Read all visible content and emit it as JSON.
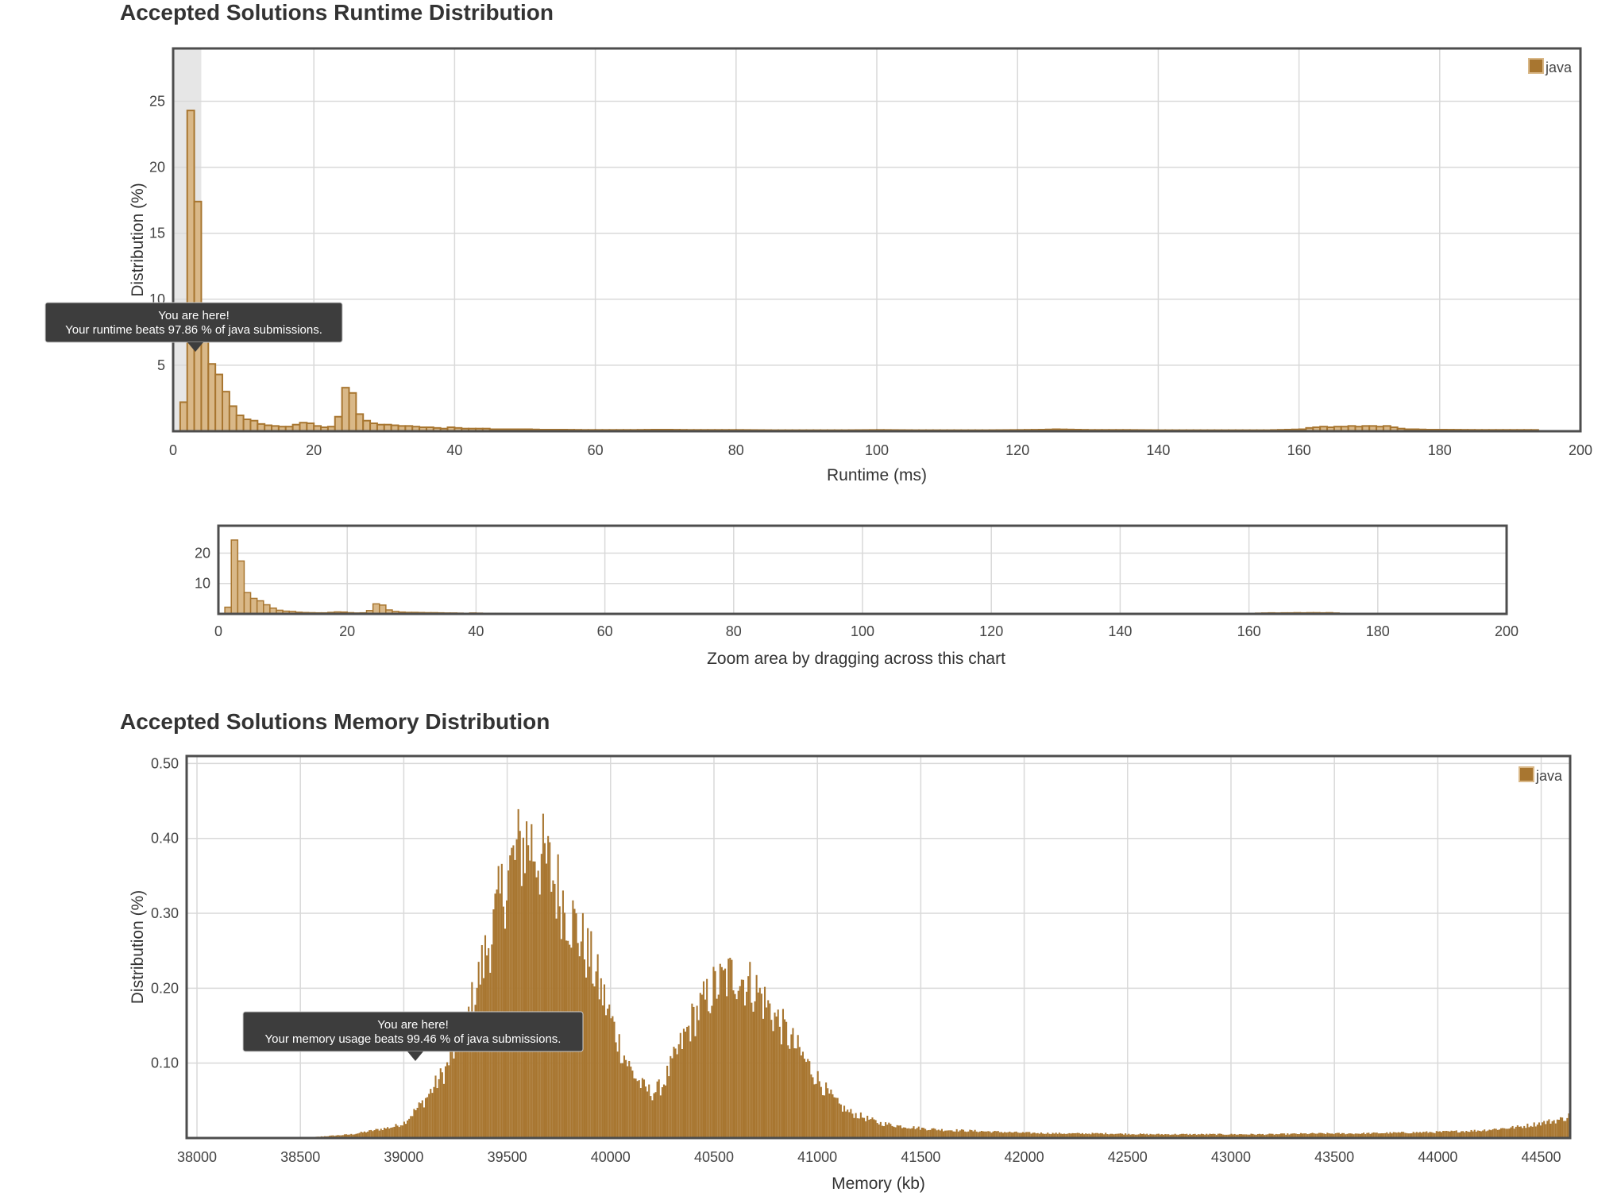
{
  "runtime": {
    "title": "Accepted Solutions Runtime Distribution",
    "tooltip": {
      "line1": "You are here!",
      "line2": "Your runtime beats 97.86 % of java submissions."
    }
  },
  "zoom": {
    "caption": "Zoom area by dragging across this chart"
  },
  "memory": {
    "title": "Accepted Solutions Memory Distribution",
    "tooltip": {
      "line1": "You are here!",
      "line2": "Your memory usage beats 99.46 % of java submissions."
    }
  },
  "colors": {
    "bar_fill": "#d9b888",
    "bar_stroke": "#a87630",
    "mem_fill": "#a87630",
    "grid": "#d9d9d9",
    "frame": "#4d4d4d",
    "highlight": "#e6e6e6",
    "tooltip_bg": "#3d3d3d"
  },
  "chart_data": [
    {
      "type": "bar",
      "title": "Accepted Solutions Runtime Distribution",
      "xlabel": "Runtime (ms)",
      "ylabel": "Distribution (%)",
      "xlim": [
        0,
        200
      ],
      "ylim": [
        0,
        29
      ],
      "xticks": [
        0,
        20,
        40,
        60,
        80,
        100,
        120,
        140,
        160,
        180,
        200
      ],
      "yticks": [
        5,
        10,
        15,
        20,
        25
      ],
      "grid": true,
      "legend": "top-right",
      "highlight_range": [
        0,
        4
      ],
      "bin_width": 1,
      "series": [
        {
          "name": "java",
          "x": [
            1,
            2,
            3,
            4,
            5,
            6,
            7,
            8,
            9,
            10,
            11,
            12,
            13,
            14,
            15,
            16,
            17,
            18,
            19,
            20,
            21,
            22,
            23,
            24,
            25,
            26,
            27,
            28,
            29,
            30,
            31,
            32,
            33,
            34,
            35,
            36,
            37,
            38,
            39,
            40,
            41,
            42,
            43,
            44,
            45,
            46,
            47,
            48,
            49,
            50,
            52,
            55,
            58,
            60,
            63,
            65,
            68,
            70,
            73,
            75,
            78,
            80,
            85,
            90,
            95,
            100,
            105,
            110,
            115,
            120,
            123,
            125,
            128,
            130,
            135,
            140,
            145,
            150,
            155,
            160,
            161,
            162,
            163,
            164,
            165,
            166,
            167,
            168,
            169,
            170,
            171,
            172,
            173,
            174,
            175,
            176,
            178,
            180,
            185,
            190,
            193
          ],
          "values": [
            2.2,
            24.3,
            17.4,
            7.0,
            5.1,
            4.3,
            3.0,
            1.9,
            1.2,
            0.9,
            0.8,
            0.55,
            0.45,
            0.4,
            0.35,
            0.35,
            0.5,
            0.65,
            0.6,
            0.4,
            0.3,
            0.35,
            1.1,
            3.3,
            2.9,
            1.3,
            0.8,
            0.6,
            0.5,
            0.5,
            0.45,
            0.4,
            0.4,
            0.35,
            0.3,
            0.3,
            0.25,
            0.2,
            0.3,
            0.25,
            0.2,
            0.2,
            0.2,
            0.2,
            0.15,
            0.15,
            0.15,
            0.15,
            0.15,
            0.15,
            0.12,
            0.12,
            0.1,
            0.1,
            0.1,
            0.1,
            0.12,
            0.12,
            0.1,
            0.1,
            0.1,
            0.1,
            0.08,
            0.08,
            0.08,
            0.1,
            0.08,
            0.08,
            0.08,
            0.1,
            0.12,
            0.15,
            0.12,
            0.1,
            0.1,
            0.08,
            0.08,
            0.08,
            0.08,
            0.15,
            0.25,
            0.3,
            0.35,
            0.3,
            0.35,
            0.35,
            0.4,
            0.35,
            0.4,
            0.4,
            0.35,
            0.4,
            0.3,
            0.2,
            0.15,
            0.15,
            0.12,
            0.12,
            0.1,
            0.1,
            0.1
          ]
        }
      ]
    },
    {
      "type": "bar",
      "caption": "Zoom area by dragging across this chart",
      "xlim": [
        0,
        200
      ],
      "ylim": [
        0,
        29
      ],
      "xticks": [
        0,
        20,
        40,
        60,
        80,
        100,
        120,
        140,
        160,
        180,
        200
      ],
      "yticks": [
        10,
        20
      ],
      "grid": true,
      "series_ref": "runtime"
    },
    {
      "type": "bar",
      "title": "Accepted Solutions Memory Distribution",
      "xlabel": "Memory (kb)",
      "ylabel": "Distribution (%)",
      "xlim": [
        37950,
        44640
      ],
      "ylim": [
        0,
        0.51
      ],
      "xticks": [
        38000,
        38500,
        39000,
        39500,
        40000,
        40500,
        41000,
        41500,
        42000,
        42500,
        43000,
        43500,
        44000,
        44500
      ],
      "yticks": [
        0.1,
        0.2,
        0.3,
        0.4,
        0.5
      ],
      "grid": true,
      "legend": "top-right",
      "bin_width": 8,
      "series": [
        {
          "name": "java",
          "x": [
            37950,
            38500,
            38650,
            38750,
            38850,
            38950,
            39000,
            39050,
            39100,
            39150,
            39200,
            39250,
            39300,
            39350,
            39400,
            39450,
            39500,
            39550,
            39600,
            39650,
            39700,
            39750,
            39800,
            39850,
            39900,
            39950,
            40000,
            40050,
            40100,
            40150,
            40200,
            40250,
            40300,
            40350,
            40400,
            40450,
            40500,
            40550,
            40600,
            40650,
            40700,
            40750,
            40800,
            40850,
            40900,
            40950,
            41000,
            41050,
            41100,
            41150,
            41200,
            41250,
            41300,
            41350,
            41400,
            41500,
            41600,
            41700,
            41800,
            41900,
            42000,
            42200,
            42400,
            42600,
            42800,
            43000,
            43200,
            43400,
            43600,
            43800,
            44000,
            44200,
            44400,
            44500,
            44600,
            44640
          ],
          "values": [
            0.0,
            0.0,
            0.003,
            0.005,
            0.01,
            0.015,
            0.02,
            0.035,
            0.05,
            0.07,
            0.09,
            0.12,
            0.15,
            0.2,
            0.25,
            0.3,
            0.35,
            0.38,
            0.4,
            0.38,
            0.36,
            0.33,
            0.3,
            0.27,
            0.24,
            0.2,
            0.16,
            0.12,
            0.09,
            0.07,
            0.06,
            0.07,
            0.1,
            0.13,
            0.16,
            0.18,
            0.2,
            0.21,
            0.22,
            0.21,
            0.2,
            0.18,
            0.16,
            0.14,
            0.12,
            0.1,
            0.08,
            0.06,
            0.045,
            0.035,
            0.03,
            0.025,
            0.02,
            0.018,
            0.016,
            0.013,
            0.011,
            0.01,
            0.009,
            0.008,
            0.007,
            0.006,
            0.006,
            0.005,
            0.005,
            0.005,
            0.005,
            0.006,
            0.006,
            0.007,
            0.008,
            0.01,
            0.015,
            0.02,
            0.025,
            0.03
          ]
        }
      ]
    }
  ]
}
